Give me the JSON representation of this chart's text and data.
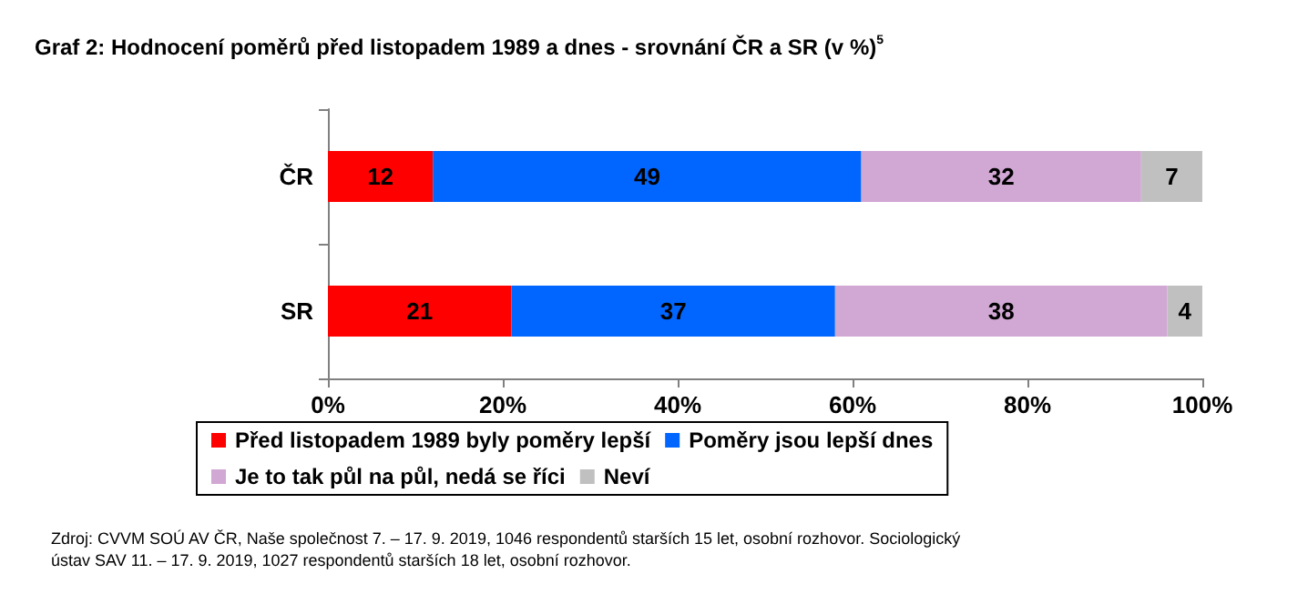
{
  "chart_data": {
    "type": "bar",
    "orientation": "horizontal",
    "stacked": true,
    "title": "Graf 2: Hodnocení poměrů před listopadem 1989 a dnes - srovnání ČR a SR (v %)$^{5}$",
    "categories": [
      "ČR",
      "SR"
    ],
    "series": [
      {
        "name": "Před listopadem 1989 byly poměry lepší",
        "color": "#ff0000",
        "values": [
          12,
          21
        ]
      },
      {
        "name": "Poměry jsou lepší dnes",
        "color": "#0066ff",
        "values": [
          49,
          37
        ]
      },
      {
        "name": "Je to tak půl na půl, nedá se říci",
        "color": "#d1a7d3",
        "values": [
          32,
          38
        ]
      },
      {
        "name": "Neví",
        "color": "#c0c0c0",
        "values": [
          7,
          4
        ]
      }
    ],
    "xlim": [
      0,
      100
    ],
    "xticks": [
      {
        "value": 0,
        "label": "0%"
      },
      {
        "value": 20,
        "label": "20%"
      },
      {
        "value": 40,
        "label": "40%"
      },
      {
        "value": 60,
        "label": "60%"
      },
      {
        "value": 80,
        "label": "80%"
      },
      {
        "value": 100,
        "label": "100%"
      }
    ],
    "data_labels": true,
    "grid": false,
    "legend": "bottom",
    "annotations": [
      "Zdroj: CVVM SOÚ AV ČR, Naše společnost 7. – 17. 9. 2019, 1046 respondentů starších 15 let, osobní rozhovor. Sociologický ústav SAV 11. – 17. 9. 2019, 1027 respondentů starších 18 let, osobní rozhovor."
    ]
  }
}
